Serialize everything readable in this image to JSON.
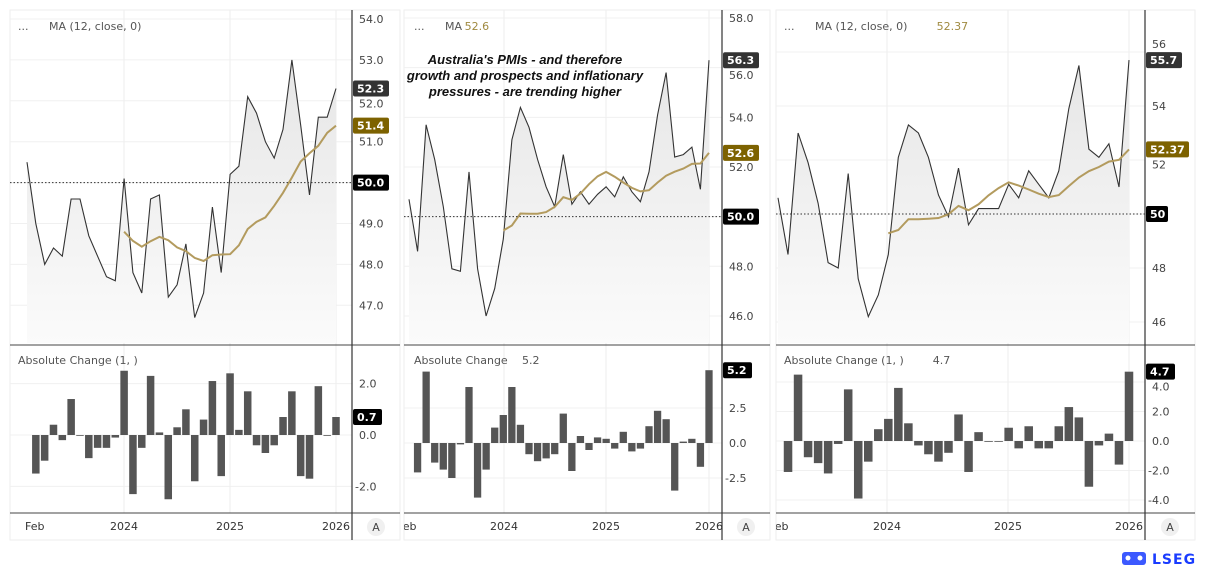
{
  "colors": {
    "close_line": "#333333",
    "ma_line": "#b39b5e",
    "ma_label_bg": "#7d6200",
    "close_label_bg": "#333333",
    "ref_label_bg": "#000000",
    "bars": "#555555",
    "logo": "#1a3cff"
  },
  "annotation": [
    "Australia's PMIs - and therefore",
    "growth and prospects and inflationary",
    "pressures - are trending higher"
  ],
  "logo_text": "LSEG",
  "autoscale_button": "A",
  "chart_data": [
    {
      "type": "line",
      "x_start": "Feb 2023",
      "x_end": "Jan 2026",
      "frequency": "monthly",
      "x_tick_labels": [
        "Feb",
        "2024",
        "2025",
        "2026"
      ],
      "legend_dots": "...",
      "legend_ma": "MA (12, close, 0)",
      "legend_ma_value": "",
      "y_ticks": [
        "54.0",
        "53.0",
        "52.0",
        "51.0",
        "50.0",
        "49.0",
        "48.0",
        "47.0"
      ],
      "ylim": [
        46.3,
        54.4
      ],
      "reference_line": 50.0,
      "reference_label": "50.0",
      "close_label": "52.3",
      "ma_label": "51.4",
      "close": [
        50.5,
        49.0,
        48.0,
        48.4,
        48.2,
        49.6,
        49.6,
        48.7,
        48.2,
        47.7,
        47.6,
        50.1,
        47.8,
        47.3,
        49.6,
        49.7,
        47.2,
        47.5,
        48.5,
        46.7,
        47.3,
        49.4,
        47.8,
        50.2,
        50.4,
        52.1,
        51.7,
        51.0,
        50.6,
        51.3,
        53.0,
        51.4,
        49.7,
        51.6,
        51.6,
        52.3
      ],
      "ma_period": 12,
      "sub": {
        "type": "bar",
        "legend": "Absolute Change (1, )",
        "legend_value": "",
        "y_ticks": [
          "2.0",
          "0.0",
          "-2.0"
        ],
        "y_tick_values": [
          2,
          0,
          -2
        ],
        "last_label": "0.7"
      }
    },
    {
      "type": "line",
      "x_start": "Feb 2023",
      "x_end": "Jan 2026",
      "frequency": "monthly",
      "x_tick_labels": [
        "Feb",
        "2024",
        "2025",
        "2026"
      ],
      "legend_dots": "...",
      "legend_ma": "MA",
      "legend_ma_value": "52.6",
      "y_ticks": [
        "58.0",
        "56.0",
        "54.0",
        "52.0",
        "50.0",
        "48.0",
        "46.0"
      ],
      "ylim": [
        45.0,
        58.3
      ],
      "reference_line": 50.0,
      "reference_label": "50.0",
      "close_label": "56.3",
      "ma_label": "52.6",
      "close": [
        50.7,
        48.6,
        53.7,
        52.3,
        50.4,
        47.9,
        47.8,
        51.8,
        47.9,
        46.0,
        47.1,
        49.1,
        53.1,
        54.4,
        53.6,
        52.3,
        51.2,
        50.4,
        52.5,
        50.5,
        51.0,
        50.5,
        50.9,
        51.2,
        50.8,
        51.6,
        51.0,
        50.6,
        51.8,
        54.1,
        55.8,
        52.4,
        52.5,
        52.8,
        51.1,
        56.3
      ],
      "ma_period": 12,
      "sub": {
        "type": "bar",
        "legend": "Absolute Change",
        "legend_value": "5.2",
        "y_ticks": [
          "2.5",
          "0.0",
          "-2.5"
        ],
        "y_tick_values": [
          2.5,
          0,
          -2.5
        ],
        "last_label": "5.2"
      }
    },
    {
      "type": "line",
      "x_start": "Feb 2023",
      "x_end": "Jan 2026",
      "frequency": "monthly",
      "x_tick_labels": [
        "Feb",
        "2024",
        "2025",
        "2026"
      ],
      "legend_dots": "...",
      "legend_ma": "MA (12, close, 0)",
      "legend_ma_value": "52.37",
      "y_ticks": [
        "56",
        "54",
        "52",
        "50",
        "48",
        "46"
      ],
      "ylim": [
        45.3,
        57.9
      ],
      "reference_line": 50,
      "reference_label": "50",
      "close_label": "55.7",
      "ma_label": "52.37",
      "close": [
        50.6,
        48.5,
        53.0,
        51.9,
        50.4,
        48.2,
        48.0,
        51.5,
        47.6,
        46.2,
        47.0,
        48.5,
        52.1,
        53.3,
        53.0,
        52.1,
        50.7,
        49.9,
        51.7,
        49.6,
        50.2,
        50.2,
        50.2,
        51.1,
        50.6,
        51.6,
        51.1,
        50.6,
        51.6,
        53.9,
        55.5,
        52.4,
        52.1,
        52.6,
        51.0,
        55.7
      ],
      "ma_period": 12,
      "sub": {
        "type": "bar",
        "legend": "Absolute Change (1, )",
        "legend_value": "4.7",
        "y_ticks": [
          "4.0",
          "2.0",
          "0.0",
          "-2.0",
          "-4.0"
        ],
        "y_tick_values": [
          4,
          2,
          0,
          -2,
          -4
        ],
        "last_label": "4.7"
      }
    }
  ]
}
